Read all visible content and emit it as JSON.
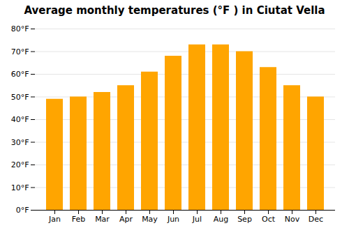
{
  "chart_data": {
    "type": "bar",
    "title": "Average monthly temperatures (°F ) in Ciutat Vella",
    "categories": [
      "Jan",
      "Feb",
      "Mar",
      "Apr",
      "May",
      "Jun",
      "Jul",
      "Aug",
      "Sep",
      "Oct",
      "Nov",
      "Dec"
    ],
    "values": [
      49,
      50,
      52,
      55,
      61,
      68,
      73,
      73,
      70,
      63,
      55,
      50
    ],
    "color": "#FFA500",
    "ylim": [
      0,
      80
    ],
    "yticks": [
      {
        "value": 0,
        "label": "0°F"
      },
      {
        "value": 10,
        "label": "10°F"
      },
      {
        "value": 20,
        "label": "20°F"
      },
      {
        "value": 30,
        "label": "30°F"
      },
      {
        "value": 40,
        "label": "40°F"
      },
      {
        "value": 50,
        "label": "50°F"
      },
      {
        "value": 60,
        "label": "60°F"
      },
      {
        "value": 70,
        "label": "70°F"
      },
      {
        "value": 80,
        "label": "80°F"
      }
    ],
    "grid": true
  }
}
